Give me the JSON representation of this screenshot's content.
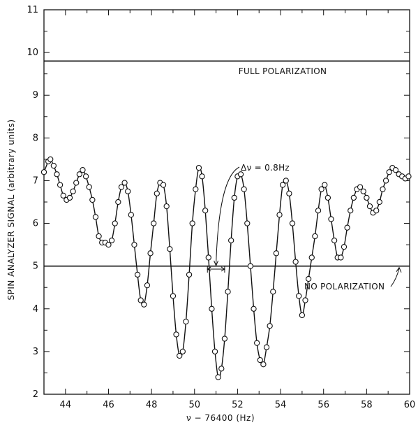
{
  "chart_data": {
    "type": "line",
    "xlabel": "ν − 76400 (Hz)",
    "ylabel": "SPIN ANALYZER SIGNAL (arbitrary units)",
    "xlim": [
      43,
      60
    ],
    "ylim": [
      2,
      11
    ],
    "x_ticks": [
      44,
      46,
      48,
      50,
      52,
      54,
      56,
      58,
      60
    ],
    "y_ticks": [
      2,
      3,
      4,
      5,
      6,
      7,
      8,
      9,
      10,
      11
    ],
    "grid": false,
    "reference_lines": [
      {
        "y": 9.8,
        "label": "FULL POLARIZATION"
      },
      {
        "y": 5.0,
        "label": "NO POLARIZATION"
      }
    ],
    "annotations": [
      {
        "text": "Δν = 0.8Hz",
        "x": 51.0,
        "width": 0.8
      }
    ],
    "series": [
      {
        "x": [
          43.0,
          43.2,
          43.3,
          43.45,
          43.6,
          43.75,
          43.9,
          44.05,
          44.2,
          44.35,
          44.5,
          44.65,
          44.8,
          44.95,
          45.1,
          45.25,
          45.4,
          45.55,
          45.7,
          45.85,
          46.0,
          46.15,
          46.3,
          46.45,
          46.6,
          46.75,
          46.9,
          47.05,
          47.2,
          47.35,
          47.5,
          47.65,
          47.8,
          47.95,
          48.1,
          48.25,
          48.4,
          48.55,
          48.7,
          48.85,
          49.0,
          49.15,
          49.3,
          49.45,
          49.6,
          49.75,
          49.9,
          50.05,
          50.2,
          50.35,
          50.5,
          50.65,
          50.8,
          50.95,
          51.1,
          51.25,
          51.4,
          51.55,
          51.7,
          51.85,
          52.0,
          52.15,
          52.3,
          52.45,
          52.6,
          52.75,
          52.9,
          53.05,
          53.2,
          53.35,
          53.5,
          53.65,
          53.8,
          53.95,
          54.1,
          54.25,
          54.4,
          54.55,
          54.7,
          54.85,
          55.0,
          55.15,
          55.3,
          55.45,
          55.6,
          55.75,
          55.9,
          56.05,
          56.2,
          56.35,
          56.5,
          56.65,
          56.8,
          56.95,
          57.1,
          57.25,
          57.4,
          57.55,
          57.7,
          57.85,
          58.0,
          58.15,
          58.3,
          58.45,
          58.6,
          58.75,
          58.9,
          59.05,
          59.2,
          59.35,
          59.5,
          59.65,
          59.8,
          59.95
        ],
        "y": [
          7.2,
          7.45,
          7.5,
          7.35,
          7.15,
          6.9,
          6.65,
          6.55,
          6.6,
          6.75,
          6.95,
          7.15,
          7.25,
          7.1,
          6.85,
          6.55,
          6.15,
          5.7,
          5.55,
          5.55,
          5.5,
          5.6,
          6.0,
          6.5,
          6.85,
          6.95,
          6.75,
          6.2,
          5.5,
          4.8,
          4.2,
          4.1,
          4.55,
          5.3,
          6.0,
          6.7,
          6.95,
          6.9,
          6.4,
          5.4,
          4.3,
          3.4,
          2.9,
          3.0,
          3.7,
          4.8,
          6.0,
          6.8,
          7.3,
          7.1,
          6.3,
          5.2,
          4.0,
          3.0,
          2.4,
          2.6,
          3.3,
          4.4,
          5.6,
          6.6,
          7.1,
          7.15,
          6.8,
          6.0,
          5.0,
          4.0,
          3.2,
          2.8,
          2.7,
          3.1,
          3.6,
          4.4,
          5.3,
          6.2,
          6.9,
          7.0,
          6.7,
          6.0,
          5.1,
          4.3,
          3.85,
          4.2,
          4.7,
          5.2,
          5.7,
          6.3,
          6.8,
          6.9,
          6.6,
          6.1,
          5.6,
          5.2,
          5.2,
          5.45,
          5.9,
          6.3,
          6.6,
          6.8,
          6.85,
          6.75,
          6.6,
          6.4,
          6.25,
          6.3,
          6.5,
          6.8,
          7.0,
          7.2,
          7.3,
          7.25,
          7.15,
          7.1,
          7.05,
          7.1
        ]
      }
    ]
  }
}
